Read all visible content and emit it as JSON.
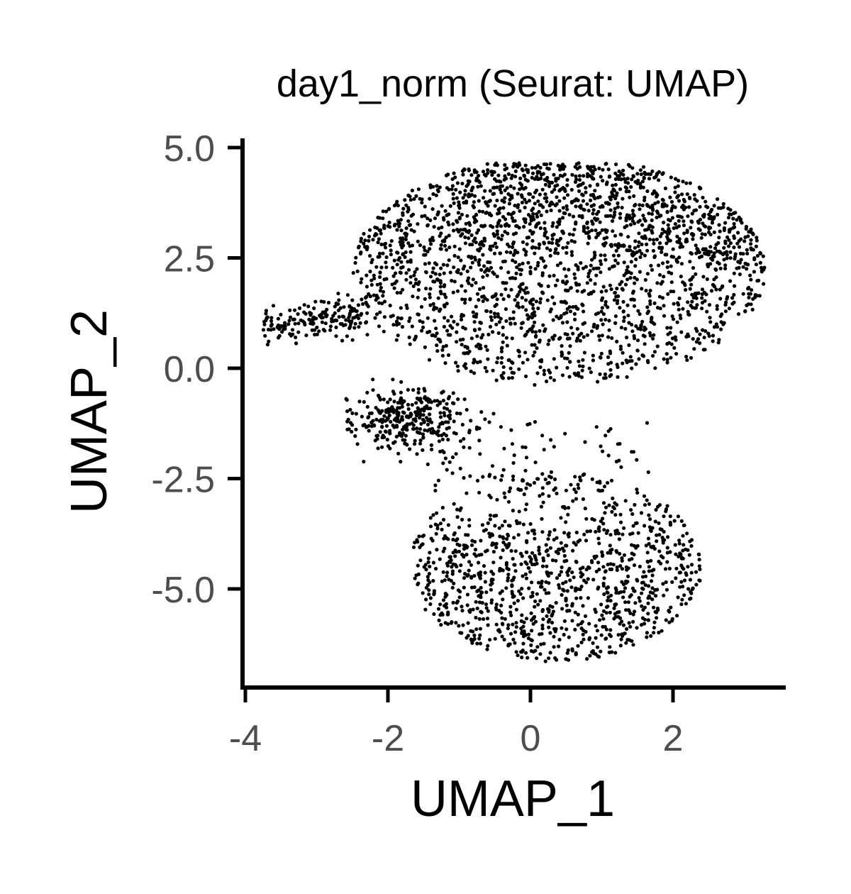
{
  "chart_data": {
    "type": "scatter",
    "title": "day1_norm (Seurat: UMAP)",
    "xlabel": "UMAP_1",
    "ylabel": "UMAP_2",
    "xlim": [
      -4.0,
      3.8
    ],
    "ylim": [
      -7.2,
      5.2
    ],
    "xticks": [
      -4,
      -2,
      0,
      2
    ],
    "xtick_labels": [
      "-4",
      "-2",
      "0",
      "2"
    ],
    "yticks": [
      5.0,
      2.5,
      0.0,
      -2.5,
      -5.0
    ],
    "ytick_labels": [
      "5.0",
      "2.5",
      "0.0",
      "-2.5",
      "-5.0"
    ],
    "point_color": "#000000",
    "grid": false,
    "legend": "none",
    "point_count_estimate": 3600,
    "clusters": [
      {
        "name": "upper-main",
        "x_range": [
          -2.5,
          3.3
        ],
        "y_range": [
          -1.0,
          4.6
        ],
        "approx_points": 2300
      },
      {
        "name": "left-tail",
        "x_range": [
          -3.7,
          -2.2
        ],
        "y_range": [
          0.2,
          1.6
        ],
        "approx_points": 180
      },
      {
        "name": "lower-left-lobe",
        "x_range": [
          -2.5,
          -1.0
        ],
        "y_range": [
          -1.8,
          -0.6
        ],
        "approx_points": 300
      },
      {
        "name": "bottom-cluster",
        "x_range": [
          -1.6,
          2.5
        ],
        "y_range": [
          -6.7,
          -2.0
        ],
        "approx_points": 1100
      }
    ]
  }
}
